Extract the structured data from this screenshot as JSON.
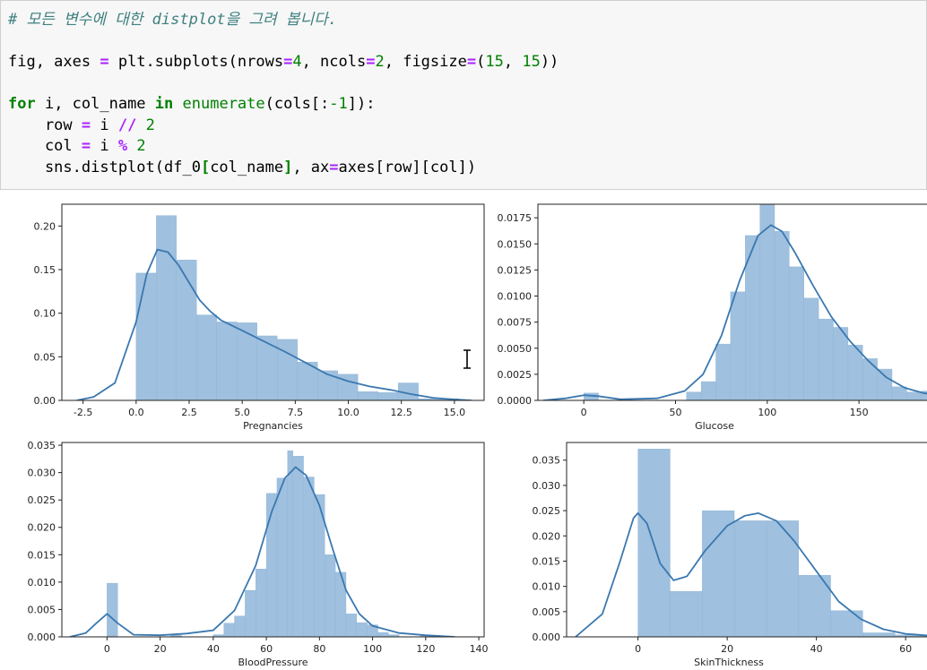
{
  "code": {
    "comment": "# 모든 변수에 대한 distplot을 그려 봅니다.",
    "line2": {
      "a": "fig, axes ",
      "eq1": "=",
      "b": " plt.subplots(nrows",
      "eq2": "=",
      "n4": "4",
      "c": ", ncols",
      "eq3": "=",
      "n2": "2",
      "d": ", figsize",
      "eq4": "=",
      "e": "(",
      "n15a": "15",
      "f": ", ",
      "n15b": "15",
      "g": "))"
    },
    "line3": {
      "kw_for": "for",
      "a": " i, col_name ",
      "kw_in": "in",
      "b": " ",
      "fn": "enumerate",
      "c": "(cols[:",
      "neg": "-1",
      "d": "]):"
    },
    "line4": {
      "a": "    row ",
      "eq": "=",
      "b": " i ",
      "op": "//",
      "c": " ",
      "n": "2"
    },
    "line5": {
      "a": "    col ",
      "eq": "=",
      "b": " i ",
      "op": "%",
      "c": " ",
      "n": "2"
    },
    "line6": {
      "a": "    sns.distplot(df_0",
      "b1": "[",
      "b": "col_name",
      "b2": "]",
      "c": ", ax",
      "eq": "=",
      "d": "axes[row][col])"
    }
  },
  "chart_data": [
    {
      "type": "histogram",
      "xlabel": "Pregnancies",
      "xlim": [
        -3.5,
        16.4
      ],
      "ylim": [
        0,
        0.225
      ],
      "xticks": [
        -2.5,
        0.0,
        2.5,
        5.0,
        7.5,
        10.0,
        12.5,
        15.0
      ],
      "xtick_labels": [
        "-2.5",
        "0.0",
        "2.5",
        "5.0",
        "7.5",
        "10.0",
        "12.5",
        "15.0"
      ],
      "yticks": [
        0,
        0.05,
        0.1,
        0.15,
        0.2
      ],
      "ytick_labels": [
        "0.00",
        "0.05",
        "0.10",
        "0.15",
        "0.20"
      ],
      "bins": [
        {
          "x0": 0.0,
          "x1": 0.95,
          "y": 0.146
        },
        {
          "x0": 0.95,
          "x1": 1.9,
          "y": 0.212
        },
        {
          "x0": 1.9,
          "x1": 2.85,
          "y": 0.161
        },
        {
          "x0": 2.85,
          "x1": 3.8,
          "y": 0.098
        },
        {
          "x0": 3.8,
          "x1": 4.75,
          "y": 0.09
        },
        {
          "x0": 4.75,
          "x1": 5.7,
          "y": 0.089
        },
        {
          "x0": 5.7,
          "x1": 6.65,
          "y": 0.074
        },
        {
          "x0": 6.65,
          "x1": 7.6,
          "y": 0.07
        },
        {
          "x0": 7.6,
          "x1": 8.55,
          "y": 0.044
        },
        {
          "x0": 8.55,
          "x1": 9.5,
          "y": 0.034
        },
        {
          "x0": 9.5,
          "x1": 10.45,
          "y": 0.03
        },
        {
          "x0": 10.45,
          "x1": 11.4,
          "y": 0.01
        },
        {
          "x0": 11.4,
          "x1": 12.35,
          "y": 0.009
        },
        {
          "x0": 12.35,
          "x1": 13.3,
          "y": 0.02
        },
        {
          "x0": 13.3,
          "x1": 15.2,
          "y": 0.002
        }
      ],
      "kde": [
        [
          -2.8,
          0.0
        ],
        [
          -2,
          0.004
        ],
        [
          -1,
          0.02
        ],
        [
          0,
          0.09
        ],
        [
          0.5,
          0.145
        ],
        [
          1,
          0.173
        ],
        [
          1.5,
          0.17
        ],
        [
          2,
          0.155
        ],
        [
          2.5,
          0.135
        ],
        [
          3,
          0.115
        ],
        [
          3.5,
          0.102
        ],
        [
          4,
          0.092
        ],
        [
          5,
          0.08
        ],
        [
          6,
          0.068
        ],
        [
          7,
          0.056
        ],
        [
          8,
          0.043
        ],
        [
          9,
          0.03
        ],
        [
          10,
          0.022
        ],
        [
          11,
          0.016
        ],
        [
          12,
          0.012
        ],
        [
          13,
          0.007
        ],
        [
          14,
          0.003
        ],
        [
          15,
          0.001
        ],
        [
          15.8,
          0.0
        ]
      ]
    },
    {
      "type": "histogram",
      "xlabel": "Glucose",
      "xlim": [
        -25,
        190
      ],
      "ylim": [
        0,
        0.0188
      ],
      "xticks": [
        0,
        50,
        100,
        150
      ],
      "xtick_labels": [
        "0",
        "50",
        "100",
        "150"
      ],
      "yticks": [
        0,
        0.0025,
        0.005,
        0.0075,
        0.01,
        0.0125,
        0.015,
        0.0175
      ],
      "ytick_labels": [
        "0.0000",
        "0.0025",
        "0.0050",
        "0.0075",
        "0.0100",
        "0.0125",
        "0.0150",
        "0.0175"
      ],
      "bins": [
        {
          "x0": 0,
          "x1": 8,
          "y": 0.0007
        },
        {
          "x0": 56,
          "x1": 64,
          "y": 0.0008
        },
        {
          "x0": 64,
          "x1": 72,
          "y": 0.0018
        },
        {
          "x0": 72,
          "x1": 80,
          "y": 0.0054
        },
        {
          "x0": 80,
          "x1": 88,
          "y": 0.0104
        },
        {
          "x0": 88,
          "x1": 96,
          "y": 0.0158
        },
        {
          "x0": 96,
          "x1": 104,
          "y": 0.019
        },
        {
          "x0": 104,
          "x1": 112,
          "y": 0.0162
        },
        {
          "x0": 112,
          "x1": 120,
          "y": 0.0128
        },
        {
          "x0": 120,
          "x1": 128,
          "y": 0.0098
        },
        {
          "x0": 128,
          "x1": 136,
          "y": 0.0078
        },
        {
          "x0": 136,
          "x1": 144,
          "y": 0.007
        },
        {
          "x0": 144,
          "x1": 152,
          "y": 0.0053
        },
        {
          "x0": 152,
          "x1": 160,
          "y": 0.004
        },
        {
          "x0": 160,
          "x1": 168,
          "y": 0.003
        },
        {
          "x0": 168,
          "x1": 176,
          "y": 0.0013
        },
        {
          "x0": 176,
          "x1": 184,
          "y": 0.0008
        },
        {
          "x0": 184,
          "x1": 192,
          "y": 0.0009
        }
      ],
      "kde": [
        [
          -22,
          0.0
        ],
        [
          -10,
          0.0002
        ],
        [
          0,
          0.0005
        ],
        [
          8,
          0.0004
        ],
        [
          20,
          0.0001
        ],
        [
          40,
          0.0002
        ],
        [
          55,
          0.0009
        ],
        [
          65,
          0.0025
        ],
        [
          75,
          0.0062
        ],
        [
          85,
          0.0115
        ],
        [
          95,
          0.0158
        ],
        [
          102,
          0.0168
        ],
        [
          108,
          0.0162
        ],
        [
          115,
          0.0142
        ],
        [
          125,
          0.011
        ],
        [
          135,
          0.008
        ],
        [
          145,
          0.0057
        ],
        [
          155,
          0.0038
        ],
        [
          165,
          0.0022
        ],
        [
          175,
          0.0012
        ],
        [
          185,
          0.0007
        ],
        [
          190,
          0.0006
        ]
      ]
    },
    {
      "type": "histogram",
      "xlabel": "BloodPressure",
      "xlim": [
        -17,
        142
      ],
      "ylim": [
        0,
        0.0355
      ],
      "xticks": [
        0,
        20,
        40,
        60,
        80,
        100,
        120,
        140
      ],
      "xtick_labels": [
        "0",
        "20",
        "40",
        "60",
        "80",
        "100",
        "120",
        "140"
      ],
      "yticks": [
        0,
        0.005,
        0.01,
        0.015,
        0.02,
        0.025,
        0.03,
        0.035
      ],
      "ytick_labels": [
        "0.000",
        "0.005",
        "0.010",
        "0.015",
        "0.020",
        "0.025",
        "0.030",
        "0.035"
      ],
      "bins": [
        {
          "x0": 0,
          "x1": 4,
          "y": 0.0098
        },
        {
          "x0": 24,
          "x1": 28,
          "y": 0.0003
        },
        {
          "x0": 40,
          "x1": 44,
          "y": 0.0004
        },
        {
          "x0": 44,
          "x1": 48,
          "y": 0.0025
        },
        {
          "x0": 48,
          "x1": 52,
          "y": 0.0038
        },
        {
          "x0": 52,
          "x1": 56,
          "y": 0.0085
        },
        {
          "x0": 56,
          "x1": 60,
          "y": 0.0124
        },
        {
          "x0": 60,
          "x1": 64,
          "y": 0.0262
        },
        {
          "x0": 64,
          "x1": 68,
          "y": 0.029
        },
        {
          "x0": 68,
          "x1": 70,
          "y": 0.034
        },
        {
          "x0": 70,
          "x1": 74,
          "y": 0.033
        },
        {
          "x0": 74,
          "x1": 78,
          "y": 0.0292
        },
        {
          "x0": 78,
          "x1": 82,
          "y": 0.026
        },
        {
          "x0": 82,
          "x1": 86,
          "y": 0.015
        },
        {
          "x0": 86,
          "x1": 90,
          "y": 0.0118
        },
        {
          "x0": 90,
          "x1": 94,
          "y": 0.0042
        },
        {
          "x0": 94,
          "x1": 98,
          "y": 0.0026
        },
        {
          "x0": 98,
          "x1": 102,
          "y": 0.0022
        },
        {
          "x0": 102,
          "x1": 106,
          "y": 0.0008
        },
        {
          "x0": 106,
          "x1": 110,
          "y": 0.0004
        },
        {
          "x0": 118,
          "x1": 122,
          "y": 0.0003
        }
      ],
      "kde": [
        [
          -14,
          0.0
        ],
        [
          -8,
          0.0007
        ],
        [
          -4,
          0.0025
        ],
        [
          0,
          0.0042
        ],
        [
          4,
          0.0025
        ],
        [
          10,
          0.0004
        ],
        [
          20,
          0.0003
        ],
        [
          30,
          0.0006
        ],
        [
          40,
          0.0012
        ],
        [
          48,
          0.0048
        ],
        [
          56,
          0.013
        ],
        [
          62,
          0.0228
        ],
        [
          67,
          0.029
        ],
        [
          71,
          0.031
        ],
        [
          75,
          0.0295
        ],
        [
          80,
          0.024
        ],
        [
          85,
          0.016
        ],
        [
          90,
          0.0085
        ],
        [
          95,
          0.0042
        ],
        [
          100,
          0.002
        ],
        [
          110,
          0.0007
        ],
        [
          120,
          0.0003
        ],
        [
          131,
          0.0
        ]
      ]
    },
    {
      "type": "histogram",
      "xlabel": "SkinThickness",
      "xlim": [
        -16,
        66
      ],
      "ylim": [
        0,
        0.0385
      ],
      "xticks": [
        0,
        20,
        40,
        60
      ],
      "xtick_labels": [
        "0",
        "20",
        "40",
        "60"
      ],
      "yticks": [
        0,
        0.005,
        0.01,
        0.015,
        0.02,
        0.025,
        0.03,
        0.035
      ],
      "ytick_labels": [
        "0.000",
        "0.005",
        "0.010",
        "0.015",
        "0.020",
        "0.025",
        "0.030",
        "0.035"
      ],
      "bins": [
        {
          "x0": 0,
          "x1": 7.2,
          "y": 0.0372
        },
        {
          "x0": 7.2,
          "x1": 14.4,
          "y": 0.009
        },
        {
          "x0": 14.4,
          "x1": 21.6,
          "y": 0.025
        },
        {
          "x0": 21.6,
          "x1": 28.8,
          "y": 0.023
        },
        {
          "x0": 28.8,
          "x1": 36,
          "y": 0.023
        },
        {
          "x0": 36,
          "x1": 43.2,
          "y": 0.0122
        },
        {
          "x0": 43.2,
          "x1": 50.4,
          "y": 0.0052
        },
        {
          "x0": 50.4,
          "x1": 57.6,
          "y": 0.0008
        },
        {
          "x0": 57.6,
          "x1": 66,
          "y": 0.0004
        }
      ],
      "kde": [
        [
          -14,
          0.0
        ],
        [
          -8,
          0.0045
        ],
        [
          -4,
          0.015
        ],
        [
          -1,
          0.0235
        ],
        [
          0,
          0.0245
        ],
        [
          2,
          0.0225
        ],
        [
          5,
          0.0145
        ],
        [
          8,
          0.0112
        ],
        [
          11,
          0.012
        ],
        [
          15,
          0.017
        ],
        [
          20,
          0.022
        ],
        [
          24,
          0.024
        ],
        [
          27,
          0.0245
        ],
        [
          31,
          0.023
        ],
        [
          35,
          0.019
        ],
        [
          40,
          0.013
        ],
        [
          45,
          0.007
        ],
        [
          50,
          0.0035
        ],
        [
          55,
          0.0015
        ],
        [
          60,
          0.0006
        ],
        [
          66,
          0.0002
        ]
      ]
    }
  ]
}
